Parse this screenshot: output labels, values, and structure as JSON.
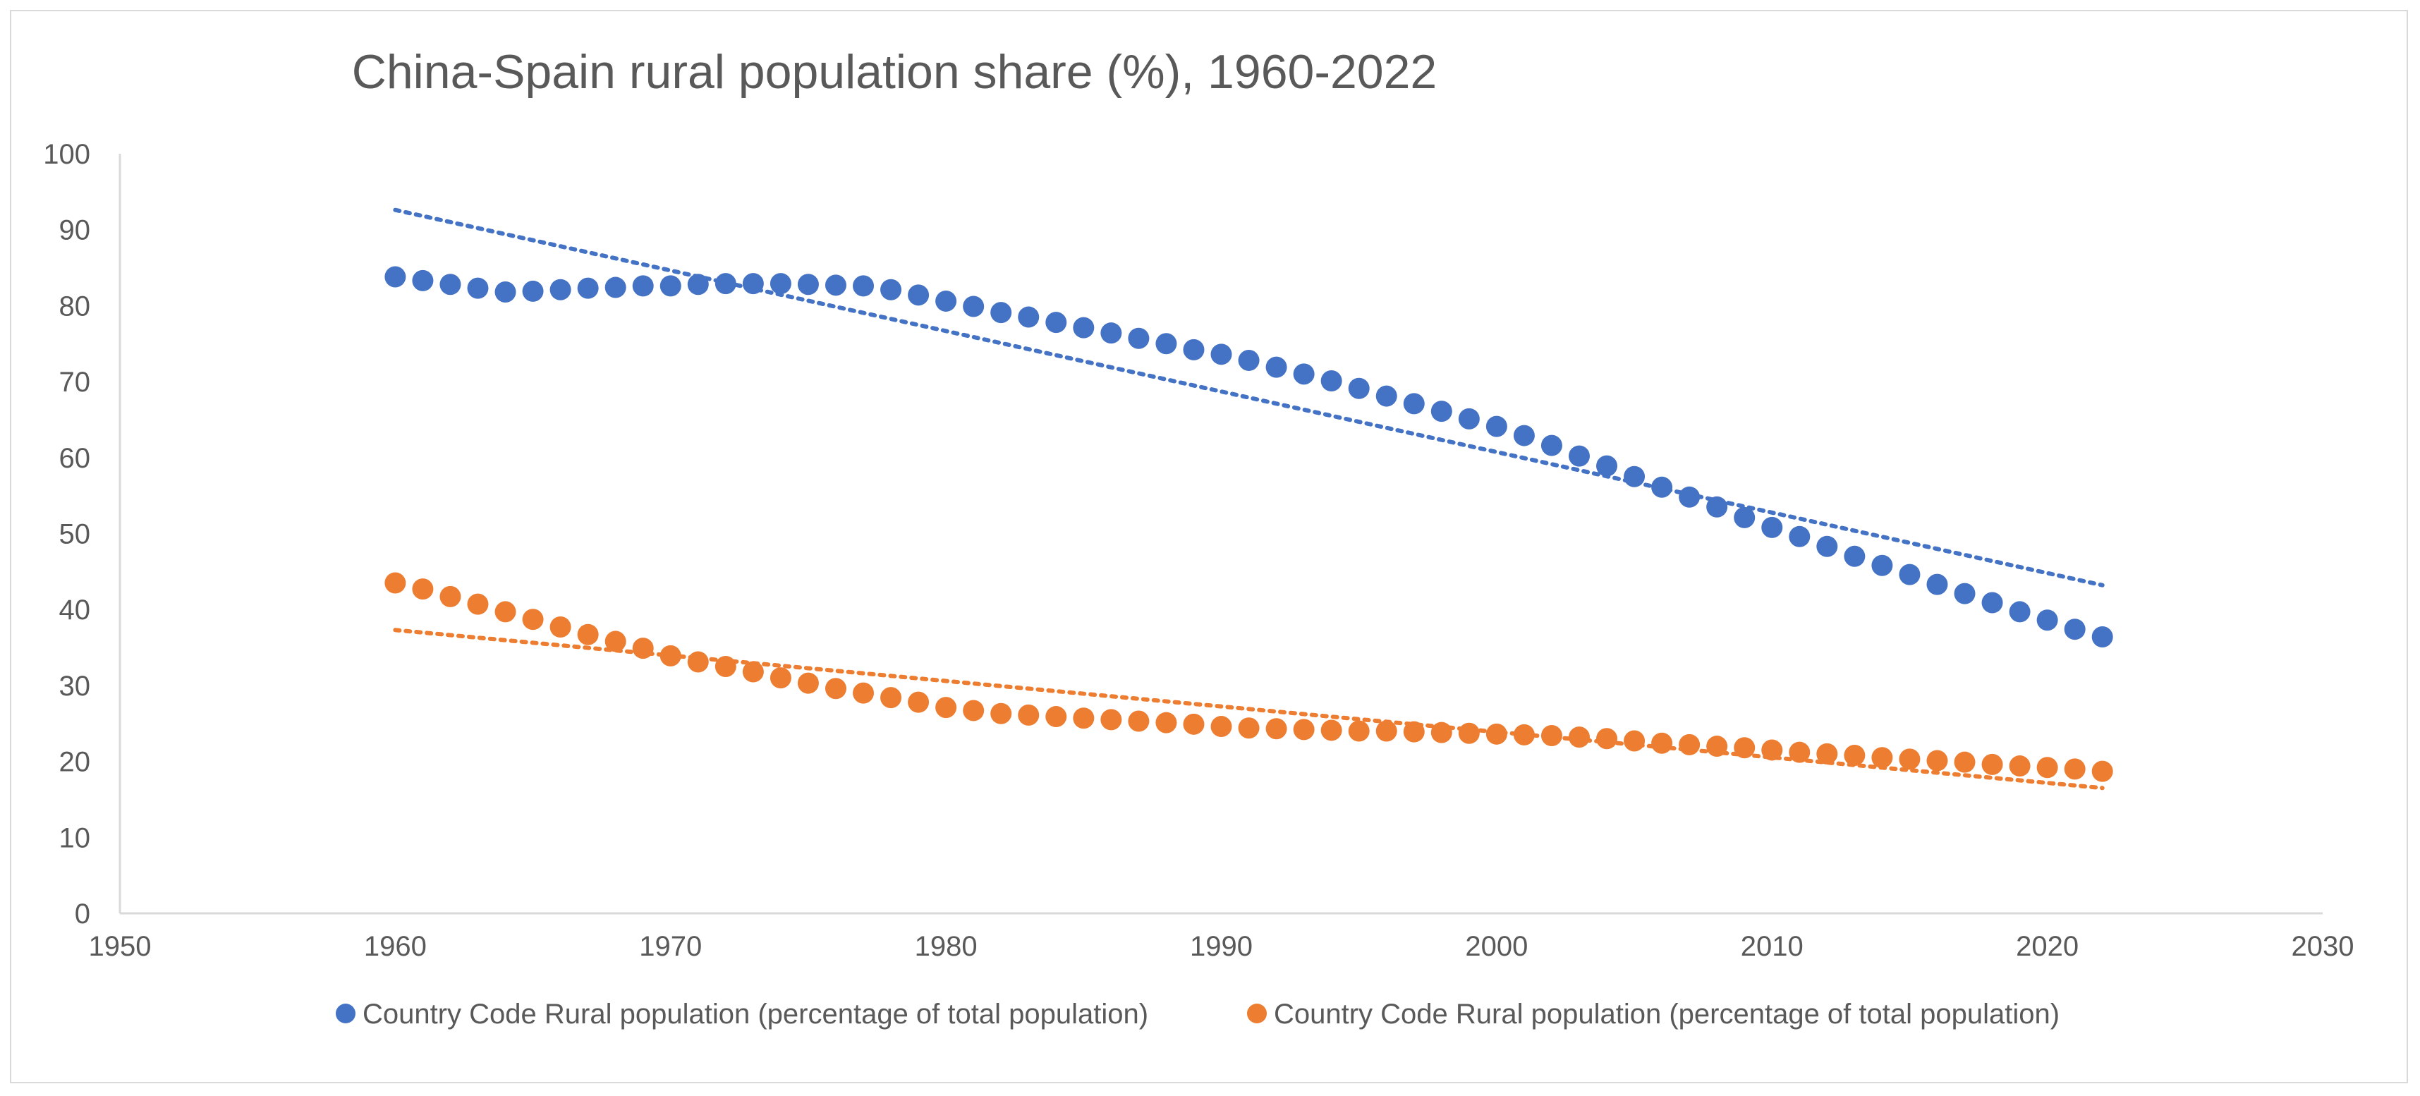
{
  "chart_data": {
    "type": "scatter",
    "title": "China-Spain rural population share (%), 1960-2022",
    "xlabel": "",
    "ylabel": "",
    "xlim": [
      1950,
      2030
    ],
    "ylim": [
      0,
      100
    ],
    "x_ticks": [
      1950,
      1960,
      1970,
      1980,
      1990,
      2000,
      2010,
      2020,
      2030
    ],
    "y_ticks": [
      0,
      10,
      20,
      30,
      40,
      50,
      60,
      70,
      80,
      90,
      100
    ],
    "legend_position": "bottom",
    "grid": false,
    "x": [
      1960,
      1961,
      1962,
      1963,
      1964,
      1965,
      1966,
      1967,
      1968,
      1969,
      1970,
      1971,
      1972,
      1973,
      1974,
      1975,
      1976,
      1977,
      1978,
      1979,
      1980,
      1981,
      1982,
      1983,
      1984,
      1985,
      1986,
      1987,
      1988,
      1989,
      1990,
      1991,
      1992,
      1993,
      1994,
      1995,
      1996,
      1997,
      1998,
      1999,
      2000,
      2001,
      2002,
      2003,
      2004,
      2005,
      2006,
      2007,
      2008,
      2009,
      2010,
      2011,
      2012,
      2013,
      2014,
      2015,
      2016,
      2017,
      2018,
      2019,
      2020,
      2021,
      2022
    ],
    "series": [
      {
        "name": "Country Code Rural population (percentage of total population)",
        "color": "#4472c4",
        "values": [
          83.8,
          83.3,
          82.8,
          82.3,
          81.8,
          81.9,
          82.1,
          82.3,
          82.4,
          82.6,
          82.6,
          82.8,
          82.9,
          82.9,
          82.9,
          82.8,
          82.7,
          82.6,
          82.1,
          81.4,
          80.6,
          79.9,
          79.1,
          78.5,
          77.8,
          77.1,
          76.4,
          75.7,
          75.0,
          74.2,
          73.6,
          72.8,
          71.9,
          71.0,
          70.1,
          69.1,
          68.1,
          67.1,
          66.1,
          65.1,
          64.1,
          62.9,
          61.6,
          60.2,
          58.9,
          57.5,
          56.1,
          54.8,
          53.5,
          52.1,
          50.8,
          49.6,
          48.3,
          47.0,
          45.8,
          44.6,
          43.3,
          42.1,
          40.9,
          39.7,
          38.6,
          37.4,
          36.4
        ]
      },
      {
        "name": "Country Code Rural population (percentage of total population)",
        "color": "#ed7d31",
        "values": [
          43.5,
          42.7,
          41.7,
          40.7,
          39.7,
          38.7,
          37.7,
          36.7,
          35.8,
          34.9,
          33.9,
          33.1,
          32.5,
          31.8,
          31.0,
          30.3,
          29.6,
          29.0,
          28.4,
          27.8,
          27.1,
          26.7,
          26.3,
          26.1,
          25.9,
          25.7,
          25.5,
          25.3,
          25.1,
          24.9,
          24.6,
          24.4,
          24.3,
          24.2,
          24.1,
          24.0,
          24.0,
          23.9,
          23.8,
          23.7,
          23.6,
          23.5,
          23.4,
          23.2,
          23.0,
          22.7,
          22.4,
          22.2,
          22.0,
          21.8,
          21.5,
          21.2,
          21.0,
          20.8,
          20.5,
          20.3,
          20.1,
          19.9,
          19.6,
          19.4,
          19.2,
          19.0,
          18.7
        ]
      }
    ],
    "trendlines": [
      {
        "color": "#4472c4",
        "from": [
          1960,
          92.6
        ],
        "to": [
          2022,
          43.2
        ]
      },
      {
        "color": "#ed7d31",
        "from": [
          1960,
          37.3
        ],
        "to": [
          2022,
          16.5
        ]
      }
    ]
  }
}
